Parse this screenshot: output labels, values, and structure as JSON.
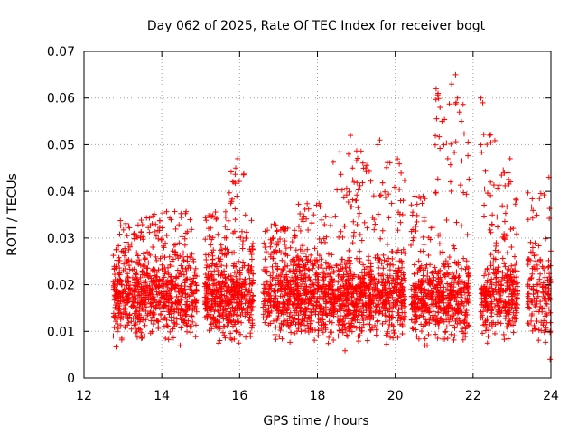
{
  "chart_data": {
    "type": "scatter",
    "title": "Day 062 of 2025, Rate Of TEC Index for receiver bogt",
    "xlabel": "GPS time / hours",
    "ylabel": "ROTI / TECUs",
    "xlim": [
      12,
      24
    ],
    "ylim": [
      0,
      0.07
    ],
    "x_ticks": [
      12,
      14,
      16,
      18,
      20,
      22,
      24
    ],
    "y_ticks": [
      0,
      0.01,
      0.02,
      0.03,
      0.04,
      0.05,
      0.06,
      0.07
    ],
    "x_tick_labels": [
      "12",
      "14",
      "16",
      "18",
      "20",
      "22",
      "24"
    ],
    "y_tick_labels": [
      "0",
      "0.01",
      "0.02",
      "0.03",
      "0.04",
      "0.05",
      "0.06",
      "0.07"
    ],
    "grid": true,
    "marker": "plus",
    "color": "#ff0000",
    "point_count_estimate": 3500,
    "series": [
      {
        "values_note_free": true,
        "bands": [
          {
            "x_range": [
              12.75,
              13.6
            ],
            "y_range": [
              0.004,
              0.035
            ],
            "count": 330
          },
          {
            "x_range": [
              13.6,
              14.55
            ],
            "y_range": [
              0.004,
              0.037
            ],
            "count": 330
          },
          {
            "x_range": [
              14.55,
              14.9
            ],
            "y_range": [
              0.005,
              0.038
            ],
            "count": 110
          },
          {
            "x_range": [
              15.1,
              15.7
            ],
            "y_range": [
              0.006,
              0.037
            ],
            "count": 260
          },
          {
            "x_range": [
              15.7,
              16.35
            ],
            "y_range": [
              0.006,
              0.047
            ],
            "count": 260
          },
          {
            "x_range": [
              16.6,
              17.5
            ],
            "y_range": [
              0.005,
              0.034
            ],
            "count": 330
          },
          {
            "x_range": [
              17.5,
              18.4
            ],
            "y_range": [
              0.004,
              0.04
            ],
            "count": 360
          },
          {
            "x_range": [
              18.4,
              19.3
            ],
            "y_range": [
              0.003,
              0.052
            ],
            "count": 380
          },
          {
            "x_range": [
              19.3,
              20.25
            ],
            "y_range": [
              0.005,
              0.051
            ],
            "count": 360
          },
          {
            "x_range": [
              20.4,
              21.0
            ],
            "y_range": [
              0.007,
              0.041
            ],
            "count": 220
          },
          {
            "x_range": [
              21.0,
              21.9
            ],
            "y_range": [
              0.006,
              0.065
            ],
            "count": 330
          },
          {
            "x_range": [
              22.2,
              22.6
            ],
            "y_range": [
              0.006,
              0.06
            ],
            "count": 140
          },
          {
            "x_range": [
              22.6,
              23.15
            ],
            "y_range": [
              0.004,
              0.047
            ],
            "count": 200
          },
          {
            "x_range": [
              23.4,
              24.0
            ],
            "y_range": [
              0.004,
              0.043
            ],
            "count": 160
          }
        ]
      }
    ],
    "highlights": [
      {
        "x": 15.95,
        "y": 0.047
      },
      {
        "x": 15.9,
        "y": 0.045
      },
      {
        "x": 15.85,
        "y": 0.042
      },
      {
        "x": 18.85,
        "y": 0.052
      },
      {
        "x": 18.8,
        "y": 0.048
      },
      {
        "x": 18.9,
        "y": 0.045
      },
      {
        "x": 19.6,
        "y": 0.051
      },
      {
        "x": 19.55,
        "y": 0.05
      },
      {
        "x": 21.05,
        "y": 0.062
      },
      {
        "x": 21.1,
        "y": 0.061
      },
      {
        "x": 21.15,
        "y": 0.058
      },
      {
        "x": 21.2,
        "y": 0.055
      },
      {
        "x": 21.45,
        "y": 0.063
      },
      {
        "x": 21.55,
        "y": 0.065
      },
      {
        "x": 21.6,
        "y": 0.06
      },
      {
        "x": 21.65,
        "y": 0.057
      },
      {
        "x": 21.7,
        "y": 0.055
      },
      {
        "x": 21.35,
        "y": 0.047
      },
      {
        "x": 21.25,
        "y": 0.05
      },
      {
        "x": 22.2,
        "y": 0.06
      },
      {
        "x": 22.25,
        "y": 0.059
      },
      {
        "x": 22.2,
        "y": 0.05
      },
      {
        "x": 22.95,
        "y": 0.047
      },
      {
        "x": 22.9,
        "y": 0.044
      },
      {
        "x": 23.95,
        "y": 0.043
      },
      {
        "x": 23.98,
        "y": 0.004
      }
    ]
  }
}
